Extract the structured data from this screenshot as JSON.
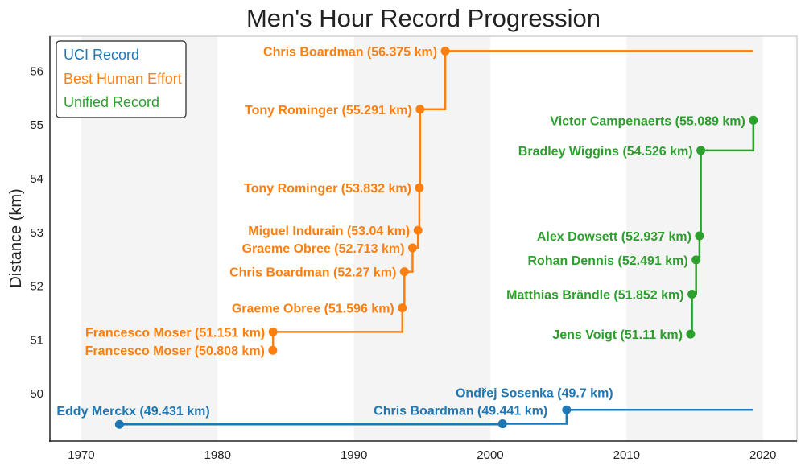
{
  "chart_data": {
    "type": "line",
    "title": "Men's Hour Record Progression",
    "xlabel": "",
    "ylabel": "Distance (km)",
    "xlim": [
      1967.7,
      2022.5
    ],
    "ylim": [
      49.12,
      56.65
    ],
    "xticks": [
      1970,
      1980,
      1990,
      2000,
      2010,
      2020
    ],
    "yticks": [
      50,
      51,
      52,
      53,
      54,
      55,
      56
    ],
    "shaded_decades": [
      [
        1970,
        1980
      ],
      [
        1990,
        2000
      ],
      [
        2010,
        2020
      ]
    ],
    "legend_position": "top-left",
    "step_style": "post",
    "series": [
      {
        "name": "UCI Record",
        "color": "#1f77b4",
        "end_x": 2019.3,
        "points": [
          {
            "x": 1972.8,
            "y": 49.431,
            "label": "Eddy Merckx (49.431 km)"
          },
          {
            "x": 2000.9,
            "y": 49.441,
            "label": "Chris Boardman (49.441 km)"
          },
          {
            "x": 2005.6,
            "y": 49.7,
            "label": "Ondřej Sosenka (49.7 km)"
          }
        ]
      },
      {
        "name": "Best Human Effort",
        "color": "#ff7f0e",
        "end_x": 2019.3,
        "points": [
          {
            "x": 1984.05,
            "y": 50.808,
            "label": "Francesco Moser (50.808 km)"
          },
          {
            "x": 1984.07,
            "y": 51.151,
            "label": "Francesco Moser (51.151 km)"
          },
          {
            "x": 1993.55,
            "y": 51.596,
            "label": "Graeme Obree (51.596 km)"
          },
          {
            "x": 1993.7,
            "y": 52.27,
            "label": "Chris Boardman (52.27 km)"
          },
          {
            "x": 1994.3,
            "y": 52.713,
            "label": "Graeme Obree (52.713 km)"
          },
          {
            "x": 1994.7,
            "y": 53.04,
            "label": "Miguel Indurain (53.04 km)"
          },
          {
            "x": 1994.8,
            "y": 53.832,
            "label": "Tony Rominger (53.832 km)"
          },
          {
            "x": 1994.85,
            "y": 55.291,
            "label": "Tony Rominger (55.291 km)"
          },
          {
            "x": 1996.7,
            "y": 56.375,
            "label": "Chris Boardman (56.375 km)"
          }
        ]
      },
      {
        "name": "Unified Record",
        "color": "#2ca02c",
        "end_x": null,
        "points": [
          {
            "x": 2014.7,
            "y": 51.11,
            "label": "Jens Voigt (51.11 km)"
          },
          {
            "x": 2014.8,
            "y": 51.852,
            "label": "Matthias Brändle (51.852 km)"
          },
          {
            "x": 2015.1,
            "y": 52.491,
            "label": "Rohan Dennis (52.491 km)"
          },
          {
            "x": 2015.35,
            "y": 52.937,
            "label": "Alex Dowsett (52.937 km)"
          },
          {
            "x": 2015.45,
            "y": 54.526,
            "label": "Bradley Wiggins (54.526 km)"
          },
          {
            "x": 2019.3,
            "y": 55.089,
            "label": "Victor Campenaerts (55.089 km)"
          }
        ]
      }
    ]
  }
}
